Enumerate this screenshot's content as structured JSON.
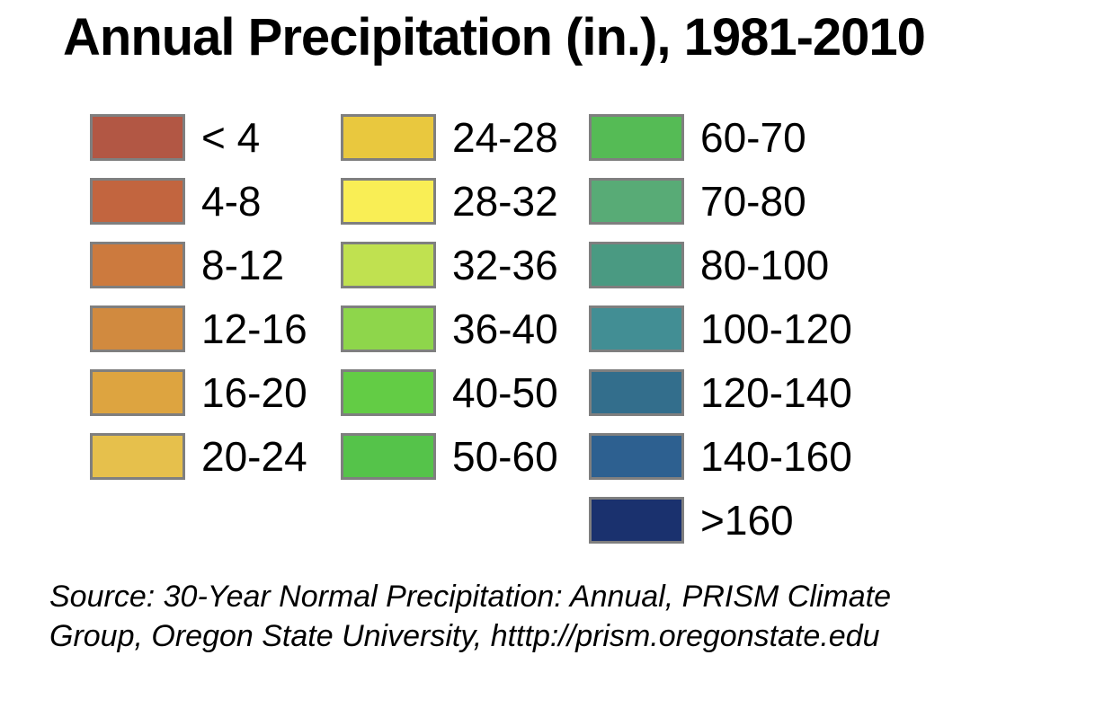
{
  "title": "Annual Precipitation (in.), 1981-2010",
  "legend": {
    "border_color": "#7f7f7f",
    "columns": [
      {
        "entries": [
          {
            "label": "< 4",
            "color": "#b25744"
          },
          {
            "label": "4-8",
            "color": "#c2653f"
          },
          {
            "label": "8-12",
            "color": "#cc7a3e"
          },
          {
            "label": "12-16",
            "color": "#d18a3f"
          },
          {
            "label": "16-20",
            "color": "#dda440"
          },
          {
            "label": "20-24",
            "color": "#e6c04c"
          }
        ]
      },
      {
        "entries": [
          {
            "label": "24-28",
            "color": "#e9c83e"
          },
          {
            "label": "28-32",
            "color": "#f9ee55"
          },
          {
            "label": "32-36",
            "color": "#c0e150"
          },
          {
            "label": "36-40",
            "color": "#8ed64b"
          },
          {
            "label": "40-50",
            "color": "#63cc45"
          },
          {
            "label": "50-60",
            "color": "#55c34a"
          }
        ]
      },
      {
        "entries": [
          {
            "label": "60-70",
            "color": "#55bb55"
          },
          {
            "label": "70-80",
            "color": "#58ab76"
          },
          {
            "label": "80-100",
            "color": "#4a9a82"
          },
          {
            "label": "100-120",
            "color": "#428e94"
          },
          {
            "label": "120-140",
            "color": "#336e8c"
          },
          {
            "label": "140-160",
            "color": "#2d6090"
          },
          {
            "label": ">160",
            "color": "#1a316e"
          }
        ]
      }
    ]
  },
  "source": {
    "line1": "Source: 30-Year Normal Precipitation: Annual, PRISM Climate",
    "line2": "Group, Oregon State University, htttp://prism.oregonstate.edu"
  }
}
